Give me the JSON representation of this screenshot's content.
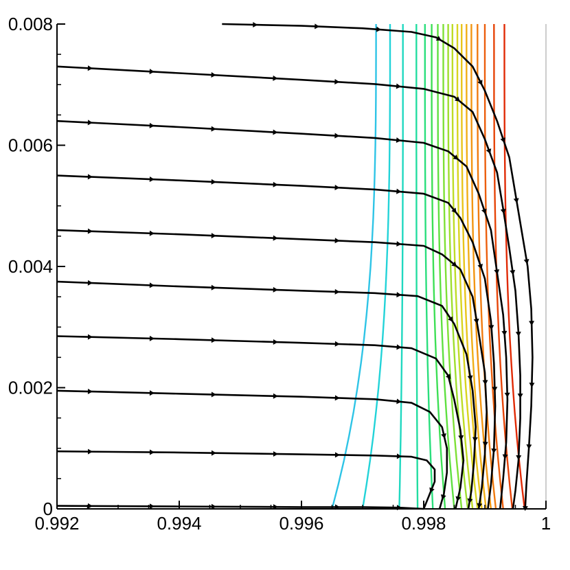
{
  "chart_data": {
    "type": "line",
    "title": "",
    "xlabel": "",
    "ylabel": "",
    "xlim": [
      0.992,
      1.0
    ],
    "ylim": [
      0,
      0.008
    ],
    "x_ticks": [
      "0.992",
      "0.994",
      "0.996",
      "0.998",
      "1"
    ],
    "y_ticks": [
      "0",
      "0.002",
      "0.004",
      "0.006",
      "0.008"
    ],
    "grid": false,
    "legend": "none",
    "streamline_color": "#000000",
    "streamlines": [
      {
        "y_start": 0.008,
        "points": [
          [
            0.9947,
            0.008
          ],
          [
            0.996,
            0.00797
          ],
          [
            0.997,
            0.00793
          ],
          [
            0.9978,
            0.00787
          ],
          [
            0.9982,
            0.00778
          ],
          [
            0.9985,
            0.0076
          ],
          [
            0.9988,
            0.0073
          ],
          [
            0.999,
            0.0069
          ],
          [
            0.9992,
            0.0064
          ],
          [
            0.9994,
            0.0058
          ],
          [
            0.9995,
            0.0052
          ],
          [
            0.9996,
            0.0046
          ],
          [
            0.9997,
            0.004
          ],
          [
            0.99976,
            0.0033
          ],
          [
            0.99978,
            0.0025
          ],
          [
            0.99976,
            0.0017
          ],
          [
            0.99972,
            0.001
          ],
          [
            0.99968,
            0.0004
          ],
          [
            0.99966,
            0.0
          ]
        ]
      },
      {
        "y_start": 0.0073,
        "points": [
          [
            0.992,
            0.0073
          ],
          [
            0.994,
            0.00719
          ],
          [
            0.996,
            0.00708
          ],
          [
            0.9972,
            0.00701
          ],
          [
            0.998,
            0.00693
          ],
          [
            0.9985,
            0.0068
          ],
          [
            0.9988,
            0.00655
          ],
          [
            0.999,
            0.0061
          ],
          [
            0.9992,
            0.00555
          ],
          [
            0.9993,
            0.00495
          ],
          [
            0.9994,
            0.0043
          ],
          [
            0.9995,
            0.0036
          ],
          [
            0.99955,
            0.0029
          ],
          [
            0.99958,
            0.0022
          ],
          [
            0.99958,
            0.0015
          ],
          [
            0.99955,
            0.0008
          ],
          [
            0.9995,
            0.0003
          ],
          [
            0.99946,
            0.0
          ]
        ]
      },
      {
        "y_start": 0.0064,
        "points": [
          [
            0.992,
            0.0064
          ],
          [
            0.994,
            0.0063
          ],
          [
            0.996,
            0.00619
          ],
          [
            0.9972,
            0.00612
          ],
          [
            0.998,
            0.00604
          ],
          [
            0.9984,
            0.0059
          ],
          [
            0.9987,
            0.00565
          ],
          [
            0.9989,
            0.0052
          ],
          [
            0.9991,
            0.0046
          ],
          [
            0.9992,
            0.0039
          ],
          [
            0.9993,
            0.0032
          ],
          [
            0.99935,
            0.0025
          ],
          [
            0.99937,
            0.0018
          ],
          [
            0.99935,
            0.0011
          ],
          [
            0.9993,
            0.0005
          ],
          [
            0.99925,
            0.0
          ]
        ]
      },
      {
        "y_start": 0.0055,
        "points": [
          [
            0.992,
            0.0055
          ],
          [
            0.994,
            0.00542
          ],
          [
            0.996,
            0.00533
          ],
          [
            0.9972,
            0.00527
          ],
          [
            0.998,
            0.0052
          ],
          [
            0.9984,
            0.00505
          ],
          [
            0.9986,
            0.0048
          ],
          [
            0.9988,
            0.0044
          ],
          [
            0.999,
            0.0038
          ],
          [
            0.9991,
            0.0031
          ],
          [
            0.99915,
            0.0024
          ],
          [
            0.99917,
            0.0017
          ],
          [
            0.99915,
            0.001
          ],
          [
            0.9991,
            0.0004
          ],
          [
            0.99905,
            0.0
          ]
        ]
      },
      {
        "y_start": 0.0046,
        "points": [
          [
            0.992,
            0.0046
          ],
          [
            0.994,
            0.00453
          ],
          [
            0.996,
            0.00445
          ],
          [
            0.9972,
            0.0044
          ],
          [
            0.998,
            0.00434
          ],
          [
            0.9983,
            0.0042
          ],
          [
            0.9986,
            0.00395
          ],
          [
            0.9988,
            0.0035
          ],
          [
            0.9989,
            0.0029
          ],
          [
            0.999,
            0.00225
          ],
          [
            0.99903,
            0.0016
          ],
          [
            0.999,
            0.0009
          ],
          [
            0.99895,
            0.00035
          ],
          [
            0.9989,
            0.0
          ]
        ]
      },
      {
        "y_start": 0.00375,
        "points": [
          [
            0.992,
            0.00375
          ],
          [
            0.994,
            0.00367
          ],
          [
            0.996,
            0.0036
          ],
          [
            0.9972,
            0.00356
          ],
          [
            0.9979,
            0.00351
          ],
          [
            0.9983,
            0.00335
          ],
          [
            0.9985,
            0.00305
          ],
          [
            0.9987,
            0.00255
          ],
          [
            0.9988,
            0.00195
          ],
          [
            0.99885,
            0.00135
          ],
          [
            0.99882,
            0.00075
          ],
          [
            0.99878,
            0.0003
          ],
          [
            0.99873,
            0.0
          ]
        ]
      },
      {
        "y_start": 0.00285,
        "points": [
          [
            0.992,
            0.00285
          ],
          [
            0.994,
            0.0028
          ],
          [
            0.996,
            0.00274
          ],
          [
            0.9972,
            0.0027
          ],
          [
            0.9978,
            0.00265
          ],
          [
            0.9982,
            0.00248
          ],
          [
            0.9984,
            0.0022
          ],
          [
            0.9985,
            0.0018
          ],
          [
            0.9986,
            0.0013
          ],
          [
            0.99865,
            0.0008
          ],
          [
            0.9986,
            0.00035
          ],
          [
            0.99852,
            0.0
          ]
        ]
      },
      {
        "y_start": 0.00195,
        "points": [
          [
            0.992,
            0.00195
          ],
          [
            0.994,
            0.0019
          ],
          [
            0.996,
            0.00185
          ],
          [
            0.9972,
            0.00181
          ],
          [
            0.9978,
            0.00175
          ],
          [
            0.9981,
            0.0016
          ],
          [
            0.9983,
            0.00135
          ],
          [
            0.99838,
            0.001
          ],
          [
            0.99838,
            0.0006
          ],
          [
            0.99833,
            0.00025
          ],
          [
            0.99826,
            0.0
          ]
        ]
      },
      {
        "y_start": 0.00095,
        "points": [
          [
            0.992,
            0.00095
          ],
          [
            0.994,
            0.00093
          ],
          [
            0.996,
            0.0009
          ],
          [
            0.9972,
            0.00088
          ],
          [
            0.9978,
            0.00086
          ],
          [
            0.99805,
            0.0008
          ],
          [
            0.99818,
            0.00065
          ],
          [
            0.99818,
            0.00045
          ],
          [
            0.9981,
            0.00025
          ],
          [
            0.998,
            0.0
          ]
        ]
      },
      {
        "y_start": 5e-05,
        "points": [
          [
            0.992,
            5e-05
          ],
          [
            0.994,
            4e-05
          ],
          [
            0.996,
            3e-05
          ],
          [
            0.997,
            3e-05
          ],
          [
            0.9976,
            2e-05
          ],
          [
            0.998,
            0.0
          ]
        ]
      }
    ],
    "contour_colors": [
      "#2ec4e6",
      "#22d3d8",
      "#1fd8c0",
      "#22dda0",
      "#2ade7c",
      "#3ddf55",
      "#5ee040",
      "#7ee035",
      "#9ede2d",
      "#bddc26",
      "#d8d41f",
      "#e8c41a",
      "#f0ae16",
      "#f29512",
      "#f07a0f",
      "#ec5e0c",
      "#e64408",
      "#e02a05"
    ],
    "contour_x_top": [
      0.99722,
      0.99745,
      0.99766,
      0.99788,
      0.99802,
      0.99813,
      0.99823,
      0.99832,
      0.9984,
      0.99847,
      0.99855,
      0.99862,
      0.9987,
      0.99878,
      0.99888,
      0.999,
      0.99915,
      0.99932
    ],
    "contour_x_bottom": [
      0.9965,
      0.997,
      0.9976,
      0.9979,
      0.99815,
      0.99835,
      0.9985,
      0.99862,
      0.99872,
      0.9988,
      0.99888,
      0.99895,
      0.99902,
      0.9991,
      0.99918,
      0.9993,
      0.99945,
      0.99965
    ]
  }
}
